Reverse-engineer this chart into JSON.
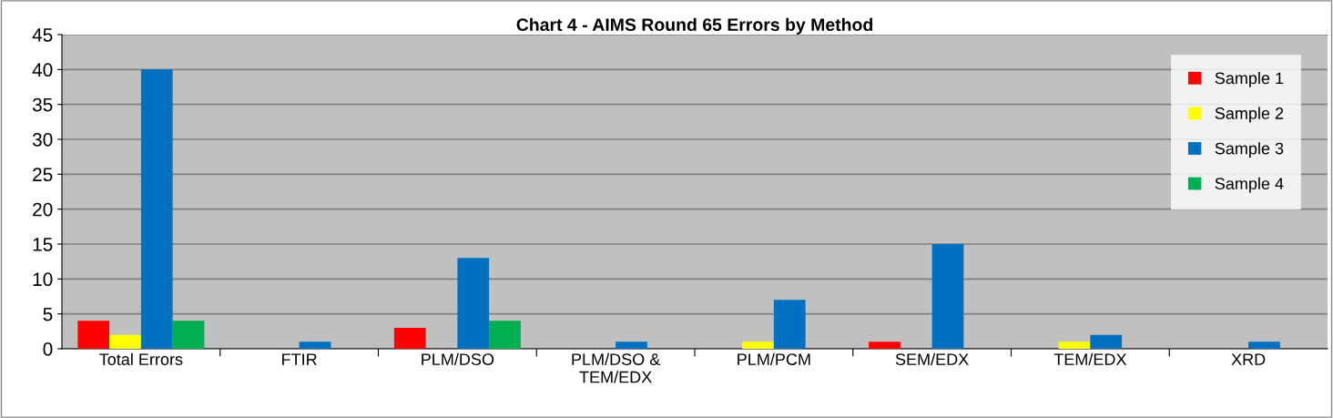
{
  "chart_data": {
    "type": "bar",
    "title": "Chart 4 - AIMS Round 65 Errors by Method",
    "categories": [
      "Total Errors",
      "FTIR",
      "PLM/DSO",
      "PLM/DSO &\nTEM/EDX",
      "PLM/PCM",
      "SEM/EDX",
      "TEM/EDX",
      "XRD"
    ],
    "series": [
      {
        "name": "Sample 1",
        "color": "#ff0000",
        "values": [
          4,
          0,
          3,
          0,
          0,
          1,
          0,
          0
        ]
      },
      {
        "name": "Sample 2",
        "color": "#ffff00",
        "values": [
          2,
          0,
          0,
          0,
          1,
          0,
          1,
          0
        ]
      },
      {
        "name": "Sample 3",
        "color": "#0070c0",
        "values": [
          40,
          1,
          13,
          1,
          7,
          15,
          2,
          1
        ]
      },
      {
        "name": "Sample 4",
        "color": "#00b050",
        "values": [
          4,
          0,
          4,
          0,
          0,
          0,
          0,
          0
        ]
      }
    ],
    "ylim": [
      0,
      45
    ],
    "yticks": [
      0,
      5,
      10,
      15,
      20,
      25,
      30,
      35,
      40,
      45
    ],
    "grid": "y",
    "legend": "top right"
  }
}
